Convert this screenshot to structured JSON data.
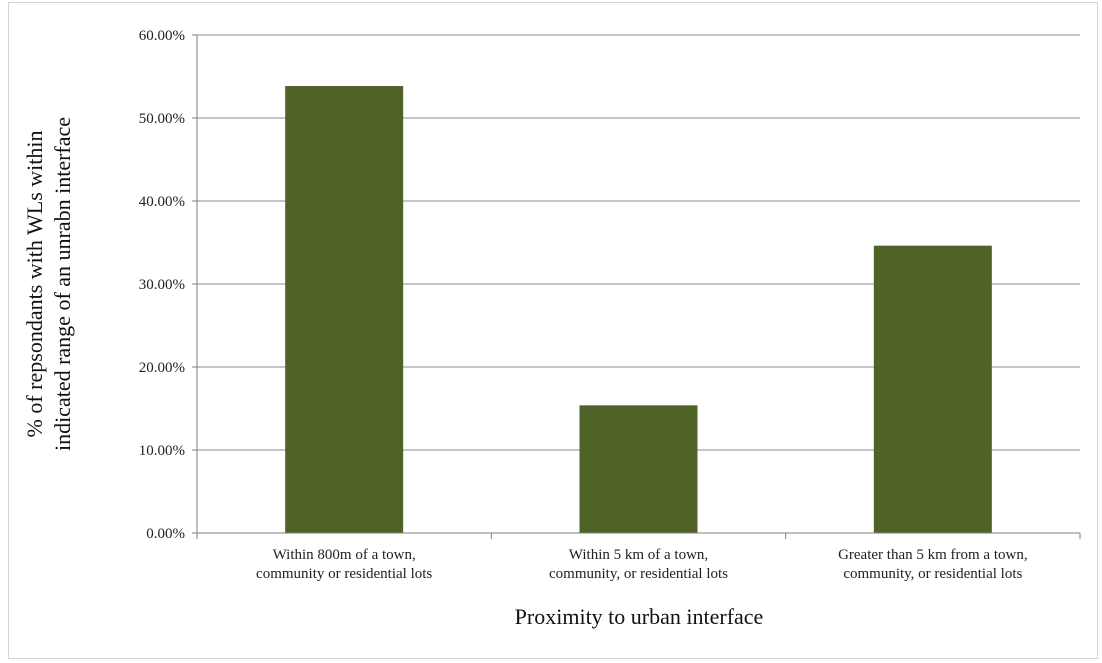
{
  "chart_data": {
    "type": "bar",
    "title": "",
    "xlabel": "Proximity to urban interface",
    "ylabel_lines": [
      "% of repsondants with WLs  within",
      "indicated range of an unrabn interface"
    ],
    "categories": [
      [
        "Within 800m of a town,",
        "community or residential lots"
      ],
      [
        "Within 5 km of a town,",
        "community, or residential lots"
      ],
      [
        "Greater than 5 km from a town,",
        "community, or residential lots"
      ]
    ],
    "values": [
      53.85,
      15.38,
      34.62
    ],
    "ylim": [
      0,
      60
    ],
    "yticks": [
      0,
      10,
      20,
      30,
      40,
      50,
      60
    ],
    "ytick_labels": [
      "0.00%",
      "10.00%",
      "20.00%",
      "30.00%",
      "40.00%",
      "50.00%",
      "60.00%"
    ],
    "grid": true,
    "legend": "none",
    "bar_color": "#4f6228"
  }
}
